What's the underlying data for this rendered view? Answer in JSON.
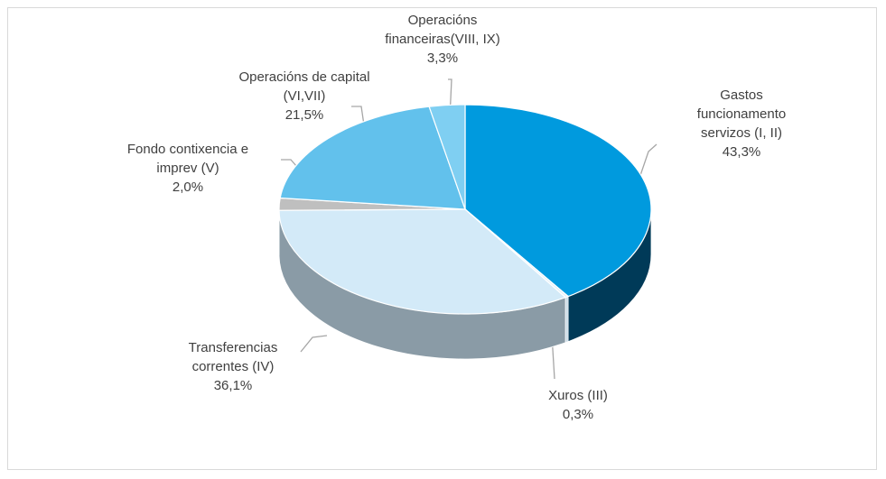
{
  "chart_data": {
    "type": "pie3d",
    "categories": [
      "Gastos funcionamento servizos (I, II)",
      "Xuros (III)",
      "Transferencias correntes (IV)",
      "Fondo contixencia e imprev (V)",
      "Operacións de capital (VI,VII)",
      "Operacións financeiras(VIII, IX)"
    ],
    "values": [
      43.3,
      0.3,
      36.1,
      2.0,
      21.5,
      3.3
    ],
    "value_labels": [
      "43,3%",
      "0,3%",
      "36,1%",
      "2,0%",
      "21,5%",
      "3,3%"
    ],
    "colors": [
      "#009ade",
      "#e3f1fa",
      "#d3eaf8",
      "#bfbfbf",
      "#62c1ec",
      "#7fcff2"
    ],
    "side_colors": [
      "#003a58",
      "#c9dbe6",
      "#8a9ba6",
      "#8c8c8c",
      "#3a8fb5",
      "#4fa6cc"
    ]
  }
}
